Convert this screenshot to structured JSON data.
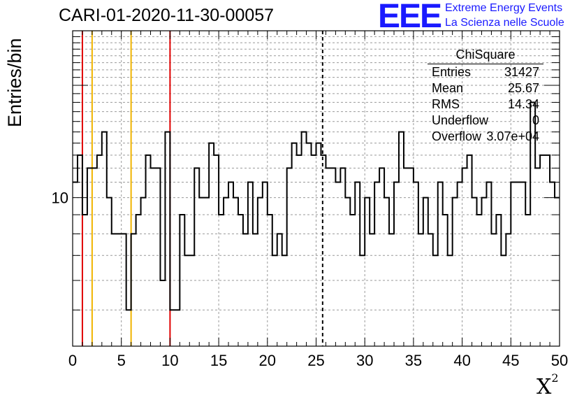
{
  "title": "CARI-01-2020-11-30-00057",
  "logo": {
    "mark": "EEE",
    "line1": "Extreme Energy Events",
    "line2": "La Scienza nelle Scuole"
  },
  "stats_box": {
    "name": "ChiSquare",
    "rows": [
      {
        "label": "Entries",
        "value": "31427"
      },
      {
        "label": "Mean",
        "value": "25.67"
      },
      {
        "label": "RMS",
        "value": "14.34"
      },
      {
        "label": "Underflow",
        "value": "0"
      },
      {
        "label": "Overflow",
        "value": "3.07e+04"
      }
    ]
  },
  "colors": {
    "histogram": "#000000",
    "red_lines": "#e00000",
    "yellow_lines": "#f0b400",
    "grid": "#999999",
    "logo": "#1a1aff"
  },
  "chart_data": {
    "type": "step-histogram",
    "title": "CARI-01-2020-11-30-00057",
    "xlabel": "X",
    "xlabel_superscript": "2",
    "ylabel": "Entries/bin",
    "xlim": [
      0,
      50
    ],
    "ylog": true,
    "ylim": [
      4,
      28
    ],
    "bin_width": 0.5,
    "x_ticks": [
      0,
      5,
      10,
      15,
      20,
      25,
      30,
      35,
      40,
      45,
      50
    ],
    "y_tick_labels": [
      {
        "value": 10,
        "label": "10"
      }
    ],
    "grid": true,
    "bin_values": [
      11,
      13,
      9,
      12,
      12,
      13,
      15,
      10,
      8,
      8,
      8,
      5,
      8,
      9,
      10,
      13,
      12,
      12,
      6,
      15,
      5,
      5,
      9,
      7,
      7,
      12,
      10,
      10,
      14,
      13,
      9,
      10,
      11,
      10,
      9,
      8,
      11,
      8,
      10,
      11,
      9,
      7,
      8,
      7,
      12,
      14,
      13,
      15,
      14,
      13,
      14,
      13,
      12,
      12,
      11,
      12,
      10,
      9,
      11,
      7,
      10,
      8,
      11,
      12,
      10,
      8,
      11,
      15,
      12,
      12,
      11,
      8,
      10,
      8,
      7,
      11,
      9,
      7,
      10,
      11,
      12,
      13,
      10,
      9,
      10,
      11,
      8,
      9,
      7,
      8,
      11,
      11,
      11,
      9,
      18,
      12,
      13,
      13,
      11,
      10
    ],
    "vertical_lines": [
      {
        "x": 1,
        "style": "solid",
        "color": "red"
      },
      {
        "x": 2,
        "style": "solid",
        "color": "yellow"
      },
      {
        "x": 6,
        "style": "solid",
        "color": "yellow"
      },
      {
        "x": 10,
        "style": "solid",
        "color": "red"
      },
      {
        "x": 25.67,
        "style": "dashed",
        "color": "black"
      }
    ]
  }
}
